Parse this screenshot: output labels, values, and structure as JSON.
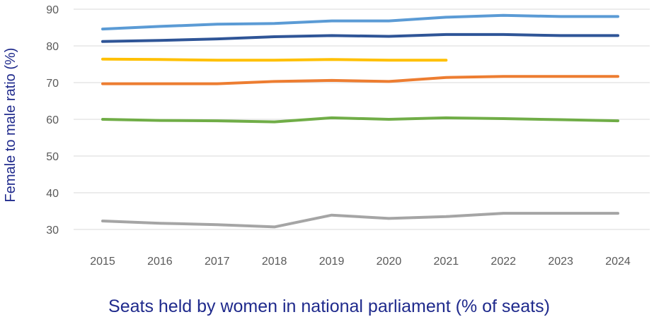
{
  "chart_data": {
    "type": "line",
    "title": "",
    "xlabel": "Seats held by women in national parliament (% of seats)",
    "ylabel": "Female to male ratio (%)",
    "ylim": [
      30,
      90
    ],
    "yticks": [
      30,
      40,
      50,
      60,
      70,
      80,
      90
    ],
    "grid": true,
    "legend": "none",
    "categories": [
      "2015",
      "2016",
      "2017",
      "2018",
      "2019",
      "2020",
      "2021",
      "2022",
      "2023",
      "2024"
    ],
    "series": [
      {
        "color": "#5b9bd5",
        "values": [
          84.6,
          85.3,
          85.9,
          86.1,
          86.8,
          86.8,
          87.8,
          88.3,
          88.0,
          88.0
        ]
      },
      {
        "color": "#2f5597",
        "values": [
          81.2,
          81.5,
          81.9,
          82.5,
          82.8,
          82.6,
          83.1,
          83.1,
          82.8,
          82.8
        ]
      },
      {
        "color": "#ffc000",
        "values": [
          76.4,
          76.3,
          76.1,
          76.1,
          76.3,
          76.1,
          76.1,
          null,
          null,
          null
        ]
      },
      {
        "color": "#ed7d31",
        "values": [
          69.7,
          69.7,
          69.7,
          70.3,
          70.6,
          70.3,
          71.4,
          71.7,
          71.7,
          71.7
        ]
      },
      {
        "color": "#70ad47",
        "values": [
          60.0,
          59.7,
          59.6,
          59.3,
          60.4,
          60.0,
          60.4,
          60.2,
          59.9,
          59.6
        ]
      },
      {
        "color": "#a5a5a5",
        "values": [
          32.3,
          31.7,
          31.3,
          30.7,
          33.9,
          33.0,
          33.5,
          34.4,
          34.4,
          34.4
        ]
      }
    ]
  }
}
